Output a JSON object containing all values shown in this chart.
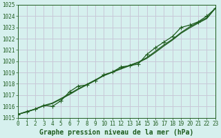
{
  "xlabel": "Graphe pression niveau de la mer (hPa)",
  "xlim": [
    0,
    23
  ],
  "ylim": [
    1015,
    1025
  ],
  "yticks": [
    1015,
    1016,
    1017,
    1018,
    1019,
    1020,
    1021,
    1022,
    1023,
    1024,
    1025
  ],
  "xticks": [
    0,
    1,
    2,
    3,
    4,
    5,
    6,
    7,
    8,
    9,
    10,
    11,
    12,
    13,
    14,
    15,
    16,
    17,
    18,
    19,
    20,
    21,
    22,
    23
  ],
  "background_color": "#d6f0ee",
  "grid_color": "#c8c8d8",
  "line_color": "#1e5c1e",
  "x": [
    0,
    1,
    2,
    3,
    4,
    5,
    6,
    7,
    8,
    9,
    10,
    11,
    12,
    13,
    14,
    15,
    16,
    17,
    18,
    19,
    20,
    21,
    22,
    23
  ],
  "y_measured": [
    1015.3,
    1015.55,
    1015.75,
    1016.1,
    1016.0,
    1016.5,
    1017.3,
    1017.8,
    1017.9,
    1018.3,
    1018.8,
    1019.05,
    1019.5,
    1019.6,
    1019.75,
    1020.6,
    1021.2,
    1021.7,
    1022.2,
    1023.0,
    1023.2,
    1023.5,
    1024.0,
    1024.7
  ],
  "y_smooth1": [
    1015.3,
    1015.5,
    1015.75,
    1016.05,
    1016.25,
    1016.65,
    1017.05,
    1017.5,
    1017.9,
    1018.3,
    1018.72,
    1019.02,
    1019.32,
    1019.6,
    1019.88,
    1020.25,
    1020.78,
    1021.35,
    1021.88,
    1022.48,
    1022.95,
    1023.38,
    1023.78,
    1024.7
  ],
  "y_smooth2": [
    1015.3,
    1015.52,
    1015.78,
    1016.08,
    1016.3,
    1016.7,
    1017.12,
    1017.56,
    1017.95,
    1018.35,
    1018.75,
    1019.05,
    1019.38,
    1019.65,
    1019.92,
    1020.32,
    1020.88,
    1021.45,
    1021.95,
    1022.55,
    1023.05,
    1023.45,
    1023.85,
    1024.7
  ],
  "marker": "P",
  "marker_size": 2.8,
  "line_width": 0.9,
  "tick_fontsize": 5.5,
  "xlabel_fontsize": 7.0,
  "text_color": "#1e5c1e"
}
